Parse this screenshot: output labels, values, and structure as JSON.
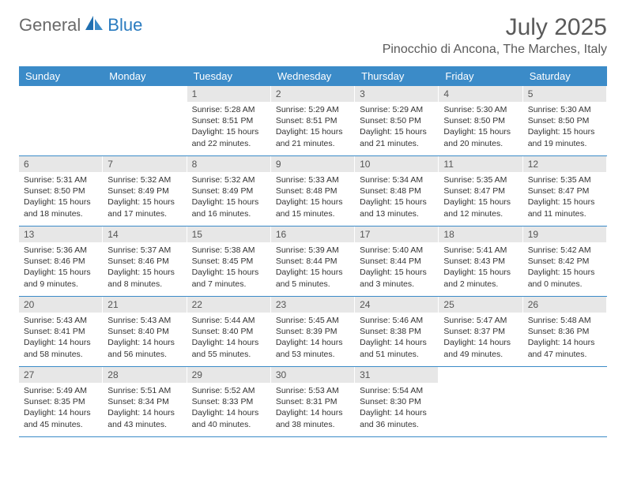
{
  "brand": {
    "part1": "General",
    "part2": "Blue"
  },
  "title": "July 2025",
  "location": "Pinocchio di Ancona, The Marches, Italy",
  "colors": {
    "header_bar": "#3b8bc8",
    "day_num_bg": "#e7e7e7",
    "text_muted": "#5a5a5a",
    "brand_blue": "#2a7bbf"
  },
  "dow": [
    "Sunday",
    "Monday",
    "Tuesday",
    "Wednesday",
    "Thursday",
    "Friday",
    "Saturday"
  ],
  "weeks": [
    [
      null,
      null,
      {
        "n": "1",
        "sr": "5:28 AM",
        "ss": "8:51 PM",
        "dl": "15 hours and 22 minutes."
      },
      {
        "n": "2",
        "sr": "5:29 AM",
        "ss": "8:51 PM",
        "dl": "15 hours and 21 minutes."
      },
      {
        "n": "3",
        "sr": "5:29 AM",
        "ss": "8:50 PM",
        "dl": "15 hours and 21 minutes."
      },
      {
        "n": "4",
        "sr": "5:30 AM",
        "ss": "8:50 PM",
        "dl": "15 hours and 20 minutes."
      },
      {
        "n": "5",
        "sr": "5:30 AM",
        "ss": "8:50 PM",
        "dl": "15 hours and 19 minutes."
      }
    ],
    [
      {
        "n": "6",
        "sr": "5:31 AM",
        "ss": "8:50 PM",
        "dl": "15 hours and 18 minutes."
      },
      {
        "n": "7",
        "sr": "5:32 AM",
        "ss": "8:49 PM",
        "dl": "15 hours and 17 minutes."
      },
      {
        "n": "8",
        "sr": "5:32 AM",
        "ss": "8:49 PM",
        "dl": "15 hours and 16 minutes."
      },
      {
        "n": "9",
        "sr": "5:33 AM",
        "ss": "8:48 PM",
        "dl": "15 hours and 15 minutes."
      },
      {
        "n": "10",
        "sr": "5:34 AM",
        "ss": "8:48 PM",
        "dl": "15 hours and 13 minutes."
      },
      {
        "n": "11",
        "sr": "5:35 AM",
        "ss": "8:47 PM",
        "dl": "15 hours and 12 minutes."
      },
      {
        "n": "12",
        "sr": "5:35 AM",
        "ss": "8:47 PM",
        "dl": "15 hours and 11 minutes."
      }
    ],
    [
      {
        "n": "13",
        "sr": "5:36 AM",
        "ss": "8:46 PM",
        "dl": "15 hours and 9 minutes."
      },
      {
        "n": "14",
        "sr": "5:37 AM",
        "ss": "8:46 PM",
        "dl": "15 hours and 8 minutes."
      },
      {
        "n": "15",
        "sr": "5:38 AM",
        "ss": "8:45 PM",
        "dl": "15 hours and 7 minutes."
      },
      {
        "n": "16",
        "sr": "5:39 AM",
        "ss": "8:44 PM",
        "dl": "15 hours and 5 minutes."
      },
      {
        "n": "17",
        "sr": "5:40 AM",
        "ss": "8:44 PM",
        "dl": "15 hours and 3 minutes."
      },
      {
        "n": "18",
        "sr": "5:41 AM",
        "ss": "8:43 PM",
        "dl": "15 hours and 2 minutes."
      },
      {
        "n": "19",
        "sr": "5:42 AM",
        "ss": "8:42 PM",
        "dl": "15 hours and 0 minutes."
      }
    ],
    [
      {
        "n": "20",
        "sr": "5:43 AM",
        "ss": "8:41 PM",
        "dl": "14 hours and 58 minutes."
      },
      {
        "n": "21",
        "sr": "5:43 AM",
        "ss": "8:40 PM",
        "dl": "14 hours and 56 minutes."
      },
      {
        "n": "22",
        "sr": "5:44 AM",
        "ss": "8:40 PM",
        "dl": "14 hours and 55 minutes."
      },
      {
        "n": "23",
        "sr": "5:45 AM",
        "ss": "8:39 PM",
        "dl": "14 hours and 53 minutes."
      },
      {
        "n": "24",
        "sr": "5:46 AM",
        "ss": "8:38 PM",
        "dl": "14 hours and 51 minutes."
      },
      {
        "n": "25",
        "sr": "5:47 AM",
        "ss": "8:37 PM",
        "dl": "14 hours and 49 minutes."
      },
      {
        "n": "26",
        "sr": "5:48 AM",
        "ss": "8:36 PM",
        "dl": "14 hours and 47 minutes."
      }
    ],
    [
      {
        "n": "27",
        "sr": "5:49 AM",
        "ss": "8:35 PM",
        "dl": "14 hours and 45 minutes."
      },
      {
        "n": "28",
        "sr": "5:51 AM",
        "ss": "8:34 PM",
        "dl": "14 hours and 43 minutes."
      },
      {
        "n": "29",
        "sr": "5:52 AM",
        "ss": "8:33 PM",
        "dl": "14 hours and 40 minutes."
      },
      {
        "n": "30",
        "sr": "5:53 AM",
        "ss": "8:31 PM",
        "dl": "14 hours and 38 minutes."
      },
      {
        "n": "31",
        "sr": "5:54 AM",
        "ss": "8:30 PM",
        "dl": "14 hours and 36 minutes."
      },
      null,
      null
    ]
  ],
  "labels": {
    "sunrise": "Sunrise:",
    "sunset": "Sunset:",
    "daylight": "Daylight:"
  }
}
